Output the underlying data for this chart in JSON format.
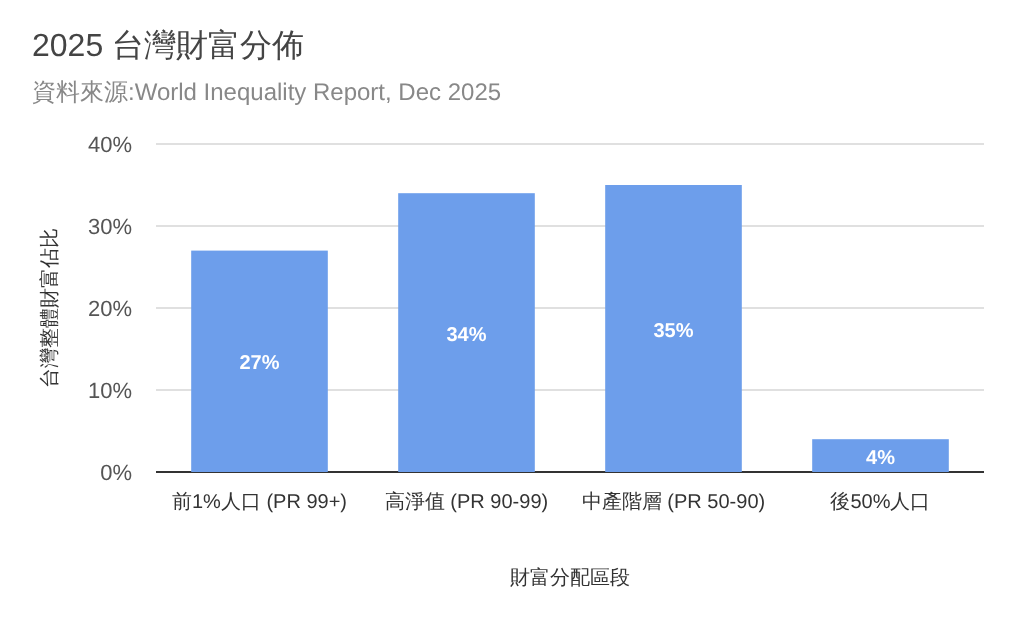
{
  "chart_data": {
    "type": "bar",
    "title": "2025 台灣財富分佈",
    "subtitle": "資料來源:World Inequality Report, Dec 2025",
    "xlabel": "財富分配區段",
    "ylabel": "台灣整體財富佔比",
    "categories": [
      "前1%人口 (PR 99+)",
      "高淨值 (PR 90-99)",
      "中產階層 (PR 50-90)",
      "後50%人口"
    ],
    "values": [
      27,
      34,
      35,
      4
    ],
    "value_labels": [
      "27%",
      "34%",
      "35%",
      "4%"
    ],
    "color": "#6d9eeb",
    "grid": "y",
    "ylim": [
      0,
      40
    ],
    "yticks": [
      {
        "value": 0,
        "label": "0%"
      },
      {
        "value": 10,
        "label": "10%"
      },
      {
        "value": 20,
        "label": "20%"
      },
      {
        "value": 30,
        "label": "30%"
      },
      {
        "value": 40,
        "label": "40%"
      }
    ]
  }
}
